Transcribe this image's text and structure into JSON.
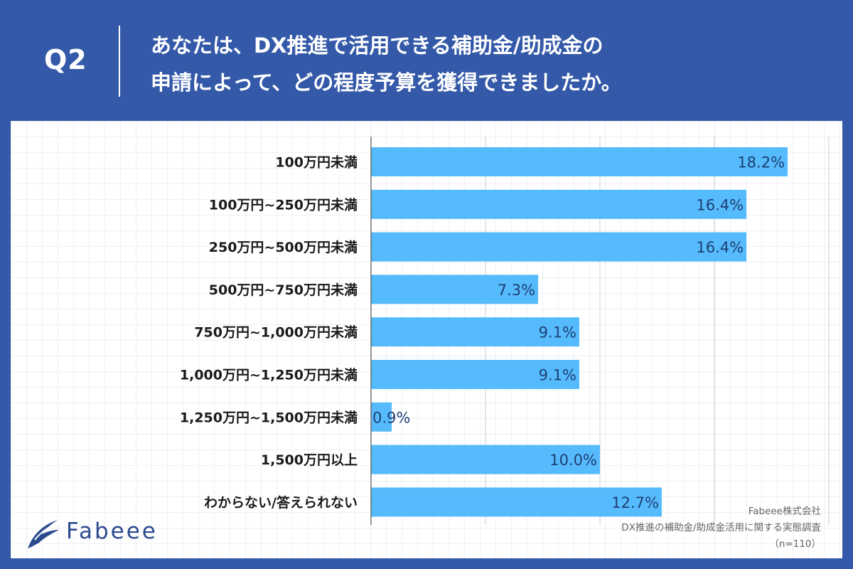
{
  "header": {
    "q_label": "Q2",
    "question_line1": "あなたは、DX推進で活用できる補助金/助成金の",
    "question_line2": "申請によって、どの程度予算を獲得できましたか。"
  },
  "colors": {
    "background": "#3459a8",
    "bar": "#55bbfd",
    "value_text": "#1f3f73",
    "logo": "#2c4b8f"
  },
  "chart_data": {
    "type": "bar",
    "orientation": "horizontal",
    "categories": [
      "100万円未満",
      "100万円~250万円未満",
      "250万円~500万円未満",
      "500万円~750万円未満",
      "750万円~1,000万円未満",
      "1,000万円~1,250万円未満",
      "1,250万円~1,500万円未満",
      "1,500万円以上",
      "わからない/答えられない"
    ],
    "values": [
      18.2,
      16.4,
      16.4,
      7.3,
      9.1,
      9.1,
      0.9,
      10.0,
      12.7
    ],
    "value_labels": [
      "18.2%",
      "16.4%",
      "16.4%",
      "7.3%",
      "9.1%",
      "9.1%",
      "0.9%",
      "10.0%",
      "12.7%"
    ],
    "xlim": [
      0,
      20
    ],
    "grid": true,
    "legend": "none"
  },
  "footer": {
    "logo_text": "Fabeee",
    "logo_icon": "fabeee-wing-logo-icon",
    "source_company": "Fabeee株式会社",
    "source_survey": "DX推進の補助金/助成金活用に関する実態調査",
    "sample_size": "（n=110）"
  }
}
